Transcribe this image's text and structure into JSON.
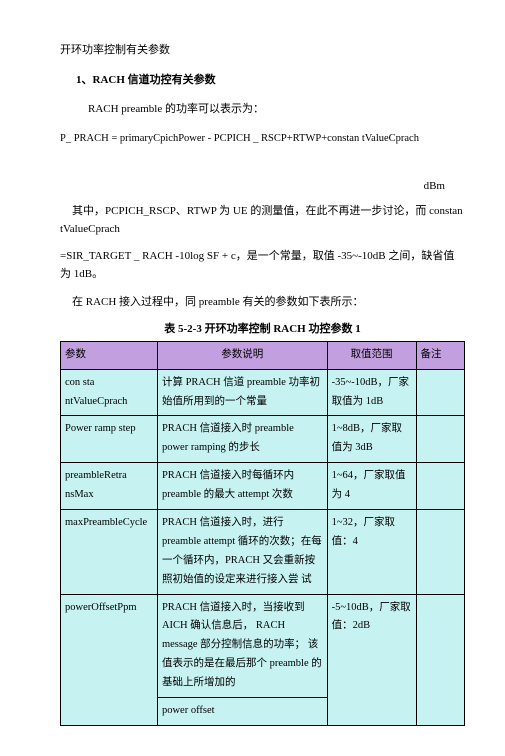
{
  "text": {
    "heading": "开环功率控制有关参数",
    "sub1": "1、RACH 信道功控有关参数",
    "line1": "RACH preamble 的功率可以表示为：",
    "formula": "P_ PRACH = primaryCpichPower - PCPICH _ RSCP+RTWP+constan tValueCprach",
    "unit": "dBm",
    "para1": "其中，PCPICH_RSCP、RTWP 为 UE 的测量值，在此不再进一步讨论，而  constan tValueCprach",
    "para2": "=SIR_TARGET _ RACH -10log SF + c，是一个常量，取值  -35~-10dB 之间，缺省值为 1dB。",
    "para3": "在 RACH 接入过程中，同 preamble 有关的参数如下表所示：",
    "caption": "表 5-2-3 开环功率控制 RACH 功控参数 1"
  },
  "table": {
    "header_bg": "#c29fde",
    "body_bg": "#c6f2f1",
    "columns": [
      "参数",
      "参数说明",
      "取值范围",
      "备注"
    ],
    "rows": [
      {
        "c0": "con sta ntValueCprach",
        "c1": "计算 PRACH 信道 preamble 功率初始值所用到的一个常量",
        "c2": "-35~-10dB，厂家取值为 1dB",
        "c3": ""
      },
      {
        "c0": "Power ramp step",
        "c1": " PRACH 信道接入时 preamble power ramping 的步长",
        "c2": "1~8dB，厂家取值为 3dB",
        "c3": ""
      },
      {
        "c0": "preambleRetra nsMax",
        "c1": " PRACH 信道接入时每循环内 preamble 的最大  attempt 次数",
        "c2": "1~64，厂家取值为 4",
        "c3": ""
      },
      {
        "c0": "maxPreambleCycle",
        "c1": " PRACH 信道接入时，进行 preamble attempt 循环的次数；在每一个循环内，PRACH 又会重新按照初始值的设定来进行接入尝  试",
        "c2": "1~32，厂家取值：4",
        "c3": ""
      },
      {
        "c0": "powerOffsetPpm",
        "c1": "PRACH 信道接入时，当接收到 AICH 确认信息后， RACH message 部分控制信息的功率；  该值表示的是在最后那个  preamble 的基础上所增加的\n power offset",
        "c2": "-5~10dB，厂家取值：2dB",
        "c3": ""
      }
    ]
  }
}
